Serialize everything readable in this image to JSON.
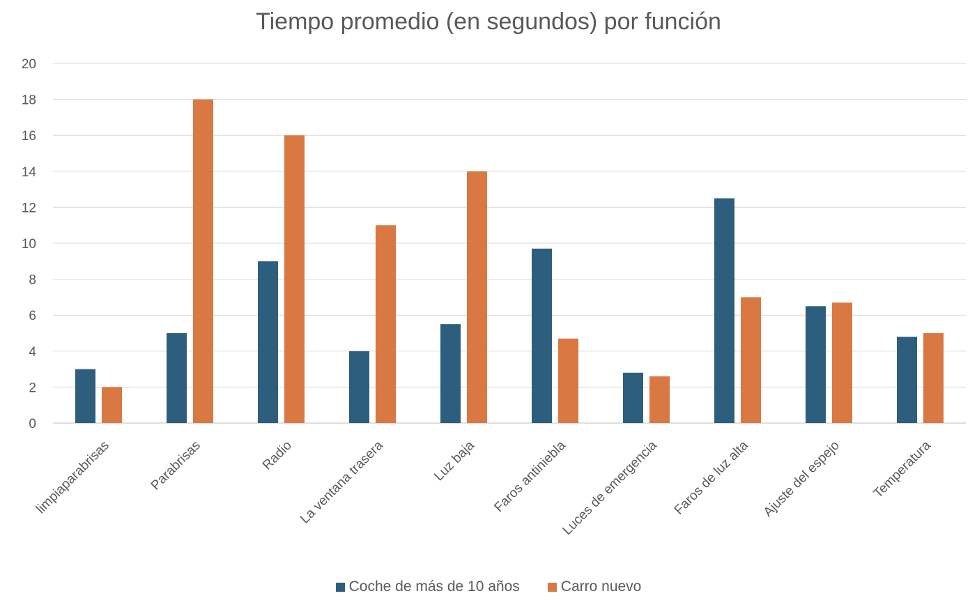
{
  "chart_data": {
    "type": "bar",
    "title": "Tiempo promedio (en segundos) por función",
    "xlabel": "",
    "ylabel": "",
    "ylim": [
      0,
      20
    ],
    "yticks": [
      "0",
      "2",
      "4",
      "6",
      "8",
      "10",
      "12",
      "14",
      "16",
      "18",
      "20"
    ],
    "grid": true,
    "legend_position": "bottom",
    "categories": [
      "limpiaparabrisas",
      "Parabrisas",
      "Radio",
      "La ventana trasera",
      "Luz baja",
      "Faros antiniebla",
      "Luces de emergencia",
      "Faros de luz alta",
      "Ajuste del espejo",
      "Temperatura"
    ],
    "series": [
      {
        "name": "Coche de más de 10 años",
        "color": "#2E5E7E",
        "values": [
          3,
          5,
          9,
          4,
          5.5,
          9.7,
          2.8,
          12.5,
          6.5,
          4.8
        ]
      },
      {
        "name": "Carro nuevo",
        "color": "#D97842",
        "values": [
          2,
          18,
          16,
          11,
          14,
          4.7,
          2.6,
          7,
          6.7,
          5
        ]
      }
    ]
  }
}
